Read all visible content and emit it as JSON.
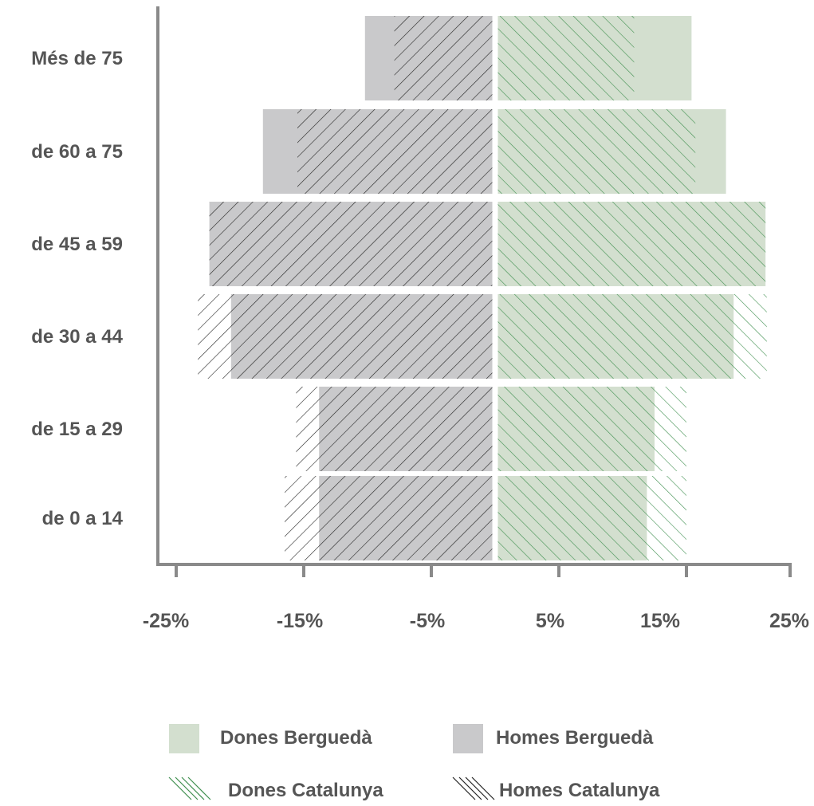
{
  "chart_data": {
    "type": "bar",
    "orientation": "horizontal",
    "subtype": "population-pyramid",
    "categories": [
      "Més de 75",
      "de 60 a 75",
      "de 45 a 59",
      "de 30 a 44",
      "de 15 a 29",
      "de 0 a 14"
    ],
    "series": [
      {
        "name": "Homes Berguedà",
        "side": "left",
        "style": "solid",
        "color": "#c9c9cb",
        "values": [
          -10.2,
          -18.2,
          -22.4,
          -20.7,
          -13.8,
          -13.8
        ]
      },
      {
        "name": "Homes Catalunya",
        "side": "left",
        "style": "hatch",
        "color": "#222222",
        "values": [
          -7.9,
          -15.5,
          -22.4,
          -23.3,
          -15.6,
          -16.5
        ]
      },
      {
        "name": "Dones Berguedà",
        "side": "right",
        "style": "solid",
        "color": "#d3dfcf",
        "values": [
          15.4,
          18.1,
          21.2,
          18.7,
          12.5,
          11.9
        ]
      },
      {
        "name": "Dones Catalunya",
        "side": "right",
        "style": "hatch",
        "color": "#3f8f4f",
        "values": [
          10.9,
          15.7,
          21.2,
          21.3,
          15.0,
          15.0
        ]
      }
    ],
    "xlim": [
      -26,
      23.5
    ],
    "xticks": [
      -25,
      -15,
      -5,
      5,
      15,
      25
    ],
    "xtick_labels": [
      "-25%",
      "-15%",
      "-5%",
      "5%",
      "15%",
      "25%"
    ],
    "title": "",
    "xlabel": "",
    "ylabel": "",
    "grid": false,
    "legend": {
      "placement": "bottom",
      "rows": [
        [
          "Dones Berguedà",
          "Homes Berguedà"
        ],
        [
          "Dones Catalunya",
          "Homes Catalunya"
        ]
      ]
    },
    "colors": {
      "axis": "#8a8a8a",
      "text": "#555555"
    }
  }
}
